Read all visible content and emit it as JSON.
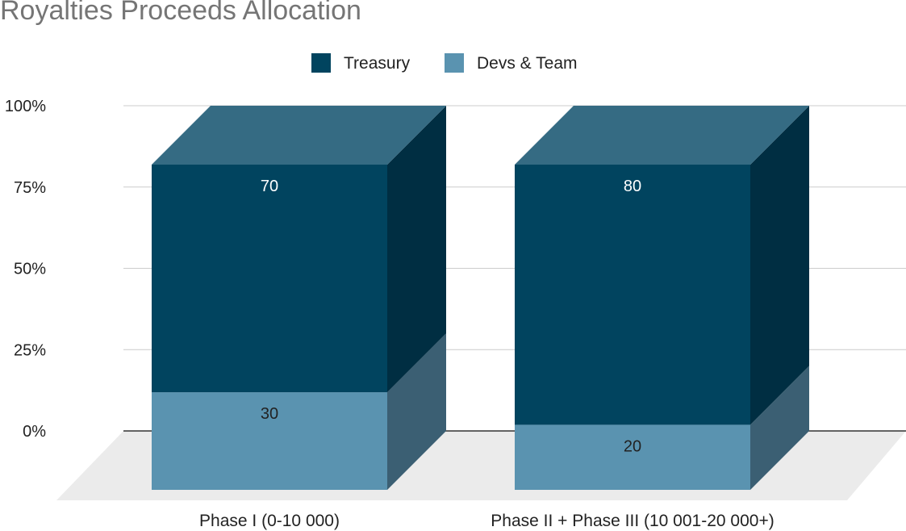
{
  "chart_data": {
    "type": "bar",
    "stacked": true,
    "percent_stacked": true,
    "style": "3d",
    "title": "Royalties Proceeds Allocation",
    "categories": [
      "Phase I (0-10 000)",
      "Phase II + Phase III (10 001-20 000+)"
    ],
    "series": [
      {
        "name": "Treasury",
        "values": [
          70,
          80
        ],
        "color": "#01445f"
      },
      {
        "name": "Devs & Team",
        "values": [
          30,
          20
        ],
        "color": "#5a93b0"
      }
    ],
    "ylim": [
      0,
      100
    ],
    "y_ticks": [
      "0%",
      "25%",
      "50%",
      "75%",
      "100%"
    ],
    "grid": true,
    "legend_position": "top-center"
  },
  "colors": {
    "title": "#757575",
    "treasury_side": "#002e42",
    "devs_side": "#3b5f73",
    "top_face": "#356b83",
    "floor": "#ebebeb",
    "gridline": "#cccccc"
  }
}
